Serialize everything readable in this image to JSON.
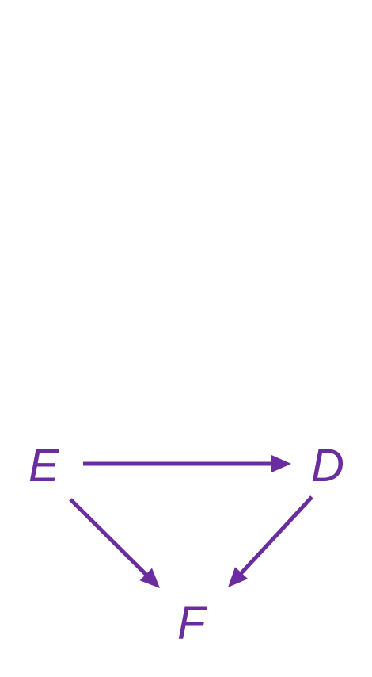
{
  "diagram": {
    "type": "directed-graph",
    "color": "#6a2c9e",
    "nodes": [
      {
        "id": "E",
        "label": "E"
      },
      {
        "id": "D",
        "label": "D"
      },
      {
        "id": "F",
        "label": "F"
      }
    ],
    "edges": [
      {
        "from": "E",
        "to": "D"
      },
      {
        "from": "E",
        "to": "F"
      },
      {
        "from": "D",
        "to": "F"
      }
    ]
  }
}
